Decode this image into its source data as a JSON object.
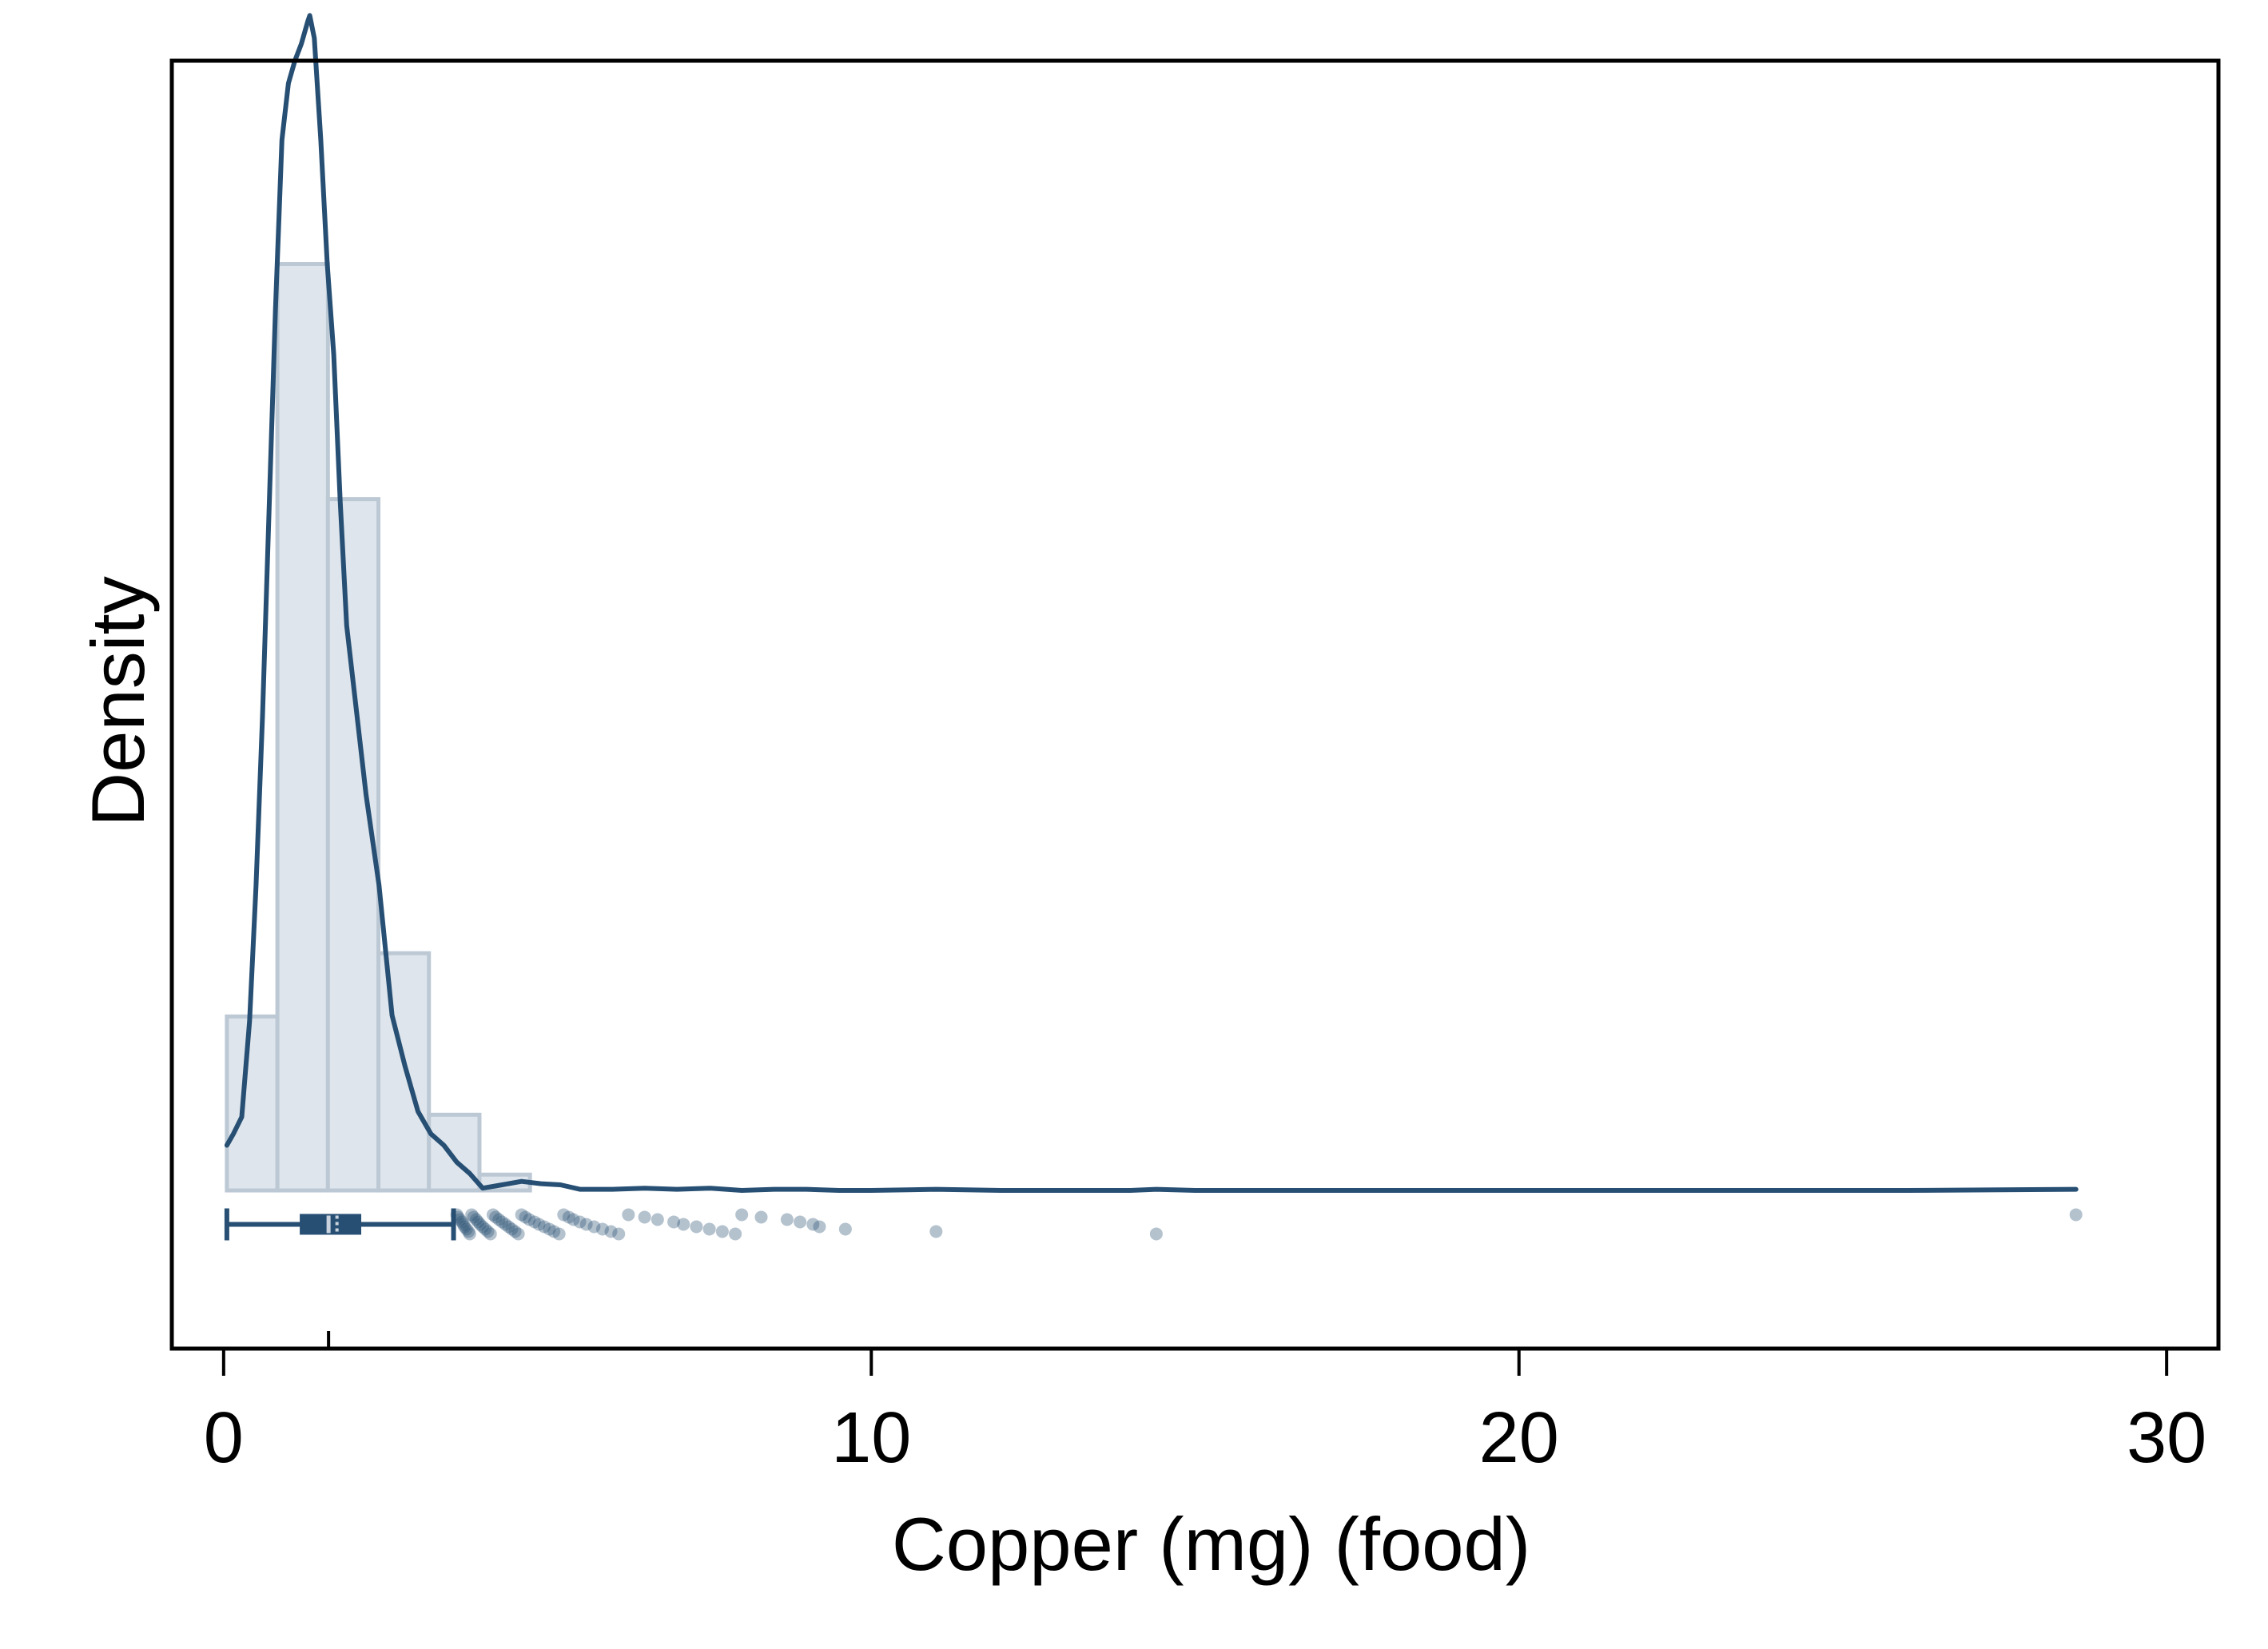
{
  "chart_data": {
    "type": "histogram",
    "xlabel": "Copper (mg) (food)",
    "ylabel": "Density",
    "xlim": [
      -0.8,
      30.8
    ],
    "ylim": [
      -0.14,
      1.0
    ],
    "x_ticks": [
      0,
      10,
      20,
      30
    ],
    "x_tick_labels": [
      "0",
      "10",
      "20",
      "30"
    ],
    "y_ticks_shown": false,
    "grid": false,
    "colors": {
      "bar_fill": "#dee5ec",
      "bar_stroke": "#bcc9d5",
      "line": "#274f73",
      "points": "#274f73",
      "frame": "#000000"
    },
    "histogram": {
      "bin_edges": [
        0.05,
        0.83,
        1.61,
        2.39,
        3.17,
        3.95,
        4.73
      ],
      "density": [
        0.154,
        0.82,
        0.612,
        0.21,
        0.067,
        0.014
      ]
    },
    "kde": {
      "x": [
        0.05,
        0.15,
        0.28,
        0.4,
        0.5,
        0.6,
        0.7,
        0.8,
        0.9,
        1.0,
        1.1,
        1.2,
        1.3,
        1.33,
        1.4,
        1.5,
        1.6,
        1.7,
        1.8,
        1.9,
        2.0,
        2.2,
        2.4,
        2.6,
        2.8,
        3.0,
        3.2,
        3.4,
        3.6,
        3.8,
        4.0,
        4.3,
        4.6,
        4.9,
        5.2,
        5.5,
        6.0,
        6.5,
        7.0,
        7.5,
        8.0,
        8.5,
        9.0,
        9.5,
        10.0,
        11.0,
        12.0,
        13.0,
        14.0,
        14.4,
        15.0,
        17.0,
        20.0,
        23.0,
        26.0,
        28.6
      ],
      "y": [
        0.04,
        0.05,
        0.065,
        0.15,
        0.27,
        0.42,
        0.6,
        0.78,
        0.93,
        0.98,
        1.0,
        1.015,
        1.035,
        1.04,
        1.02,
        0.93,
        0.82,
        0.74,
        0.61,
        0.5,
        0.45,
        0.35,
        0.27,
        0.155,
        0.11,
        0.07,
        0.05,
        0.04,
        0.025,
        0.015,
        0.002,
        0.005,
        0.008,
        0.006,
        0.005,
        0.001,
        0.001,
        0.002,
        0.001,
        0.002,
        0.0,
        0.001,
        0.001,
        0.0,
        0.0,
        0.001,
        0.0,
        0.0,
        0.0,
        0.001,
        0.0,
        0.0,
        0.0,
        0.0,
        0.0,
        0.001
      ]
    },
    "boxplot": {
      "y_position": -0.03,
      "whisker_low": 0.05,
      "q1": 1.2,
      "median": 1.62,
      "mean": 1.75,
      "q3": 2.1,
      "whisker_high": 3.55
    },
    "outliers": [
      3.6,
      3.62,
      3.65,
      3.68,
      3.7,
      3.72,
      3.75,
      3.78,
      3.8,
      3.83,
      3.86,
      3.9,
      3.93,
      3.96,
      4.0,
      4.04,
      4.08,
      4.12,
      4.16,
      4.2,
      4.25,
      4.3,
      4.35,
      4.4,
      4.45,
      4.5,
      4.55,
      4.6,
      4.66,
      4.72,
      4.8,
      4.87,
      4.95,
      5.03,
      5.1,
      5.18,
      5.25,
      5.33,
      5.4,
      5.5,
      5.6,
      5.72,
      5.85,
      5.98,
      6.1,
      6.25,
      6.5,
      6.7,
      6.95,
      7.1,
      7.3,
      7.5,
      7.7,
      7.9,
      8.0,
      8.3,
      8.7,
      8.9,
      9.1,
      9.2,
      9.6,
      11.0,
      14.4,
      28.6
    ]
  }
}
